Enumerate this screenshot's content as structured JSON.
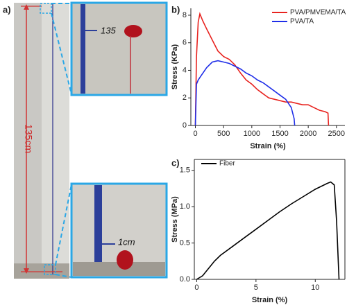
{
  "photo": {
    "panel_label": "a)",
    "length_label": "135cm",
    "top_mark_label": "135",
    "bottom_mark_label": "1cm"
  },
  "chart_data": [
    {
      "type": "line",
      "panel_label": "b)",
      "x_label": "Strain (%)",
      "y_label": "Stress (KPa)",
      "xlim": [
        -80,
        2650
      ],
      "ylim": [
        0,
        8.5
      ],
      "xticks": [
        0,
        500,
        1000,
        1500,
        2000,
        2500
      ],
      "yticks": [
        0,
        2,
        4,
        6,
        8
      ],
      "legend": "upper right",
      "box": false,
      "series": [
        {
          "name": "PVA/PMVEMA/TA",
          "color": "#e8231f",
          "x": [
            0,
            20,
            50,
            80,
            130,
            200,
            300,
            400,
            500,
            600,
            700,
            800,
            900,
            1000,
            1100,
            1200,
            1300,
            1400,
            1500,
            1600,
            1700,
            1800,
            1900,
            2000,
            2100,
            2200,
            2300,
            2350,
            2360
          ],
          "values": [
            0,
            5,
            7.5,
            8.1,
            7.6,
            7.0,
            6.2,
            5.4,
            5.0,
            4.8,
            4.4,
            3.8,
            3.3,
            3.0,
            2.6,
            2.3,
            2.0,
            1.9,
            1.8,
            1.7,
            1.7,
            1.6,
            1.5,
            1.5,
            1.3,
            1.1,
            1.0,
            0.9,
            0
          ]
        },
        {
          "name": "PVA/TA",
          "color": "#1f2ee8",
          "x": [
            0,
            20,
            50,
            100,
            200,
            300,
            400,
            500,
            600,
            700,
            800,
            900,
            1000,
            1100,
            1200,
            1300,
            1400,
            1500,
            1600,
            1700,
            1750,
            1760
          ],
          "values": [
            0,
            3,
            3.3,
            3.6,
            4.2,
            4.6,
            4.7,
            4.6,
            4.5,
            4.3,
            4.1,
            3.8,
            3.6,
            3.3,
            3.1,
            2.8,
            2.5,
            2.2,
            1.9,
            1.3,
            0.5,
            0
          ]
        }
      ]
    },
    {
      "type": "line",
      "panel_label": "c)",
      "x_label": "Strain (%)",
      "y_label": "Stress (MPa)",
      "xlim": [
        -0.2,
        12.5
      ],
      "ylim": [
        0,
        1.65
      ],
      "xticks": [
        0,
        5,
        10
      ],
      "yticks": [
        {
          "value": 0,
          "label": "0.0"
        },
        0.5,
        {
          "value": 1,
          "label": "1.0"
        },
        1.5
      ],
      "legend": "upper left",
      "box": true,
      "series": [
        {
          "name": "Fiber",
          "color": "#000000",
          "x": [
            0,
            0.5,
            1,
            1.5,
            2,
            3,
            4,
            5,
            6,
            7,
            8,
            9,
            10,
            11,
            11.3,
            11.6,
            11.8,
            12
          ],
          "values": [
            0,
            0.05,
            0.15,
            0.25,
            0.33,
            0.45,
            0.57,
            0.69,
            0.81,
            0.93,
            1.04,
            1.14,
            1.24,
            1.32,
            1.34,
            1.3,
            0.8,
            0
          ]
        }
      ]
    }
  ]
}
